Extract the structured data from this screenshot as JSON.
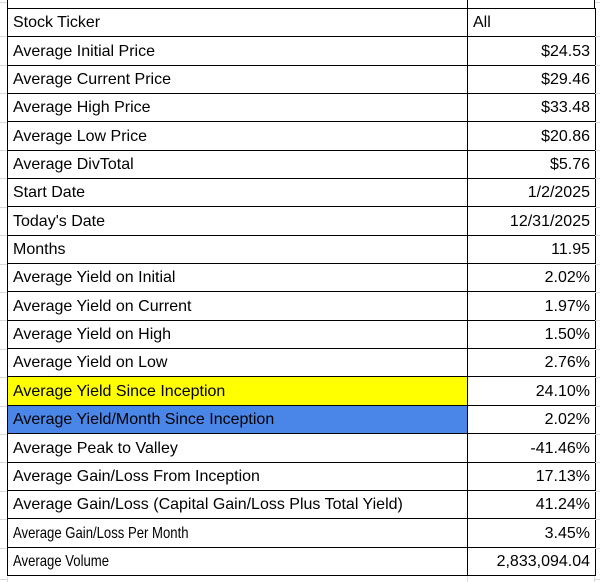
{
  "table": {
    "rows": [
      {
        "label": "Stock Ticker",
        "value": "All",
        "value_align": "left"
      },
      {
        "label": "Average Initial Price",
        "value": "$24.53"
      },
      {
        "label": "Average Current Price",
        "value": "$29.46"
      },
      {
        "label": "Average High Price",
        "value": "$33.48"
      },
      {
        "label": "Average Low Price",
        "value": "$20.86"
      },
      {
        "label": "Average DivTotal",
        "value": "$5.76"
      },
      {
        "label": "Start Date",
        "value": "1/2/2025"
      },
      {
        "label": "Today's Date",
        "value": "12/31/2025"
      },
      {
        "label": "Months",
        "value": "11.95"
      },
      {
        "label": "Average Yield on Initial",
        "value": "2.02%"
      },
      {
        "label": "Average Yield on Current",
        "value": "1.97%"
      },
      {
        "label": "Average Yield on High",
        "value": "1.50%"
      },
      {
        "label": "Average Yield on Low",
        "value": "2.76%"
      },
      {
        "label": "Average Yield Since Inception",
        "value": "24.10%",
        "label_highlight": "yellow"
      },
      {
        "label": "Average Yield/Month Since Inception",
        "value": "2.02%",
        "label_highlight": "blue"
      },
      {
        "label": "Average Peak to Valley",
        "value": "-41.46%"
      },
      {
        "label": "Average Gain/Loss From Inception",
        "value": "17.13%"
      },
      {
        "label": "Average Gain/Loss (Capital Gain/Loss Plus Total Yield)",
        "value": "41.24%"
      },
      {
        "label": "Average Gain/Loss Per Month",
        "value": "3.45%",
        "condensed": true
      },
      {
        "label": "Average Volume",
        "value": "2,833,094.04",
        "condensed": true
      }
    ]
  },
  "colors": {
    "highlight_yellow": "#ffff00",
    "highlight_blue": "#4a86e8",
    "cell_border": "#000000",
    "gridline": "#d9d9d9",
    "text": "#000000",
    "background": "#ffffff"
  }
}
